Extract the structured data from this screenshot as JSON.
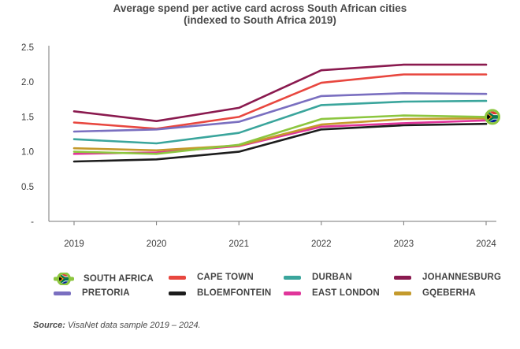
{
  "chart_data": {
    "type": "line",
    "title": "Average spend per active card across South African cities",
    "subtitle": "(indexed to South Africa 2019)",
    "x": [
      "2019",
      "2020",
      "2021",
      "2022",
      "2023",
      "2024"
    ],
    "yticks": [
      "-",
      "0.5",
      "1.0",
      "1.5",
      "2.0",
      "2.5"
    ],
    "ylim": [
      0,
      2.5
    ],
    "grid": false,
    "legend_position": "bottom",
    "series": [
      {
        "name": "SOUTH AFRICA",
        "color": "#8cc63f",
        "values": [
          1.0,
          0.97,
          1.1,
          1.47,
          1.52,
          1.5
        ]
      },
      {
        "name": "CAPE TOWN",
        "color": "#e8473f",
        "values": [
          1.42,
          1.33,
          1.5,
          1.99,
          2.11,
          2.11
        ]
      },
      {
        "name": "DURBAN",
        "color": "#3aa59c",
        "values": [
          1.18,
          1.12,
          1.27,
          1.67,
          1.72,
          1.73
        ]
      },
      {
        "name": "JOHANNESBURG",
        "color": "#8a1a4f",
        "values": [
          1.58,
          1.44,
          1.63,
          2.17,
          2.25,
          2.25
        ]
      },
      {
        "name": "PRETORIA",
        "color": "#7a6fc0",
        "values": [
          1.29,
          1.32,
          1.43,
          1.8,
          1.84,
          1.83
        ]
      },
      {
        "name": "BLOEMFONTEIN",
        "color": "#1c1c1c",
        "values": [
          0.86,
          0.89,
          1.0,
          1.32,
          1.38,
          1.4
        ]
      },
      {
        "name": "EAST LONDON",
        "color": "#e0359a",
        "values": [
          0.97,
          0.99,
          1.08,
          1.36,
          1.41,
          1.45
        ]
      },
      {
        "name": "GQEBERHA",
        "color": "#c49a2c",
        "values": [
          1.05,
          1.02,
          1.09,
          1.39,
          1.47,
          1.48
        ]
      }
    ]
  },
  "source": {
    "label": "Source:",
    "text": "VisaNet data sample 2019 – 2024."
  },
  "icons": {
    "south_africa_marker": "south-africa-flag-icon"
  }
}
